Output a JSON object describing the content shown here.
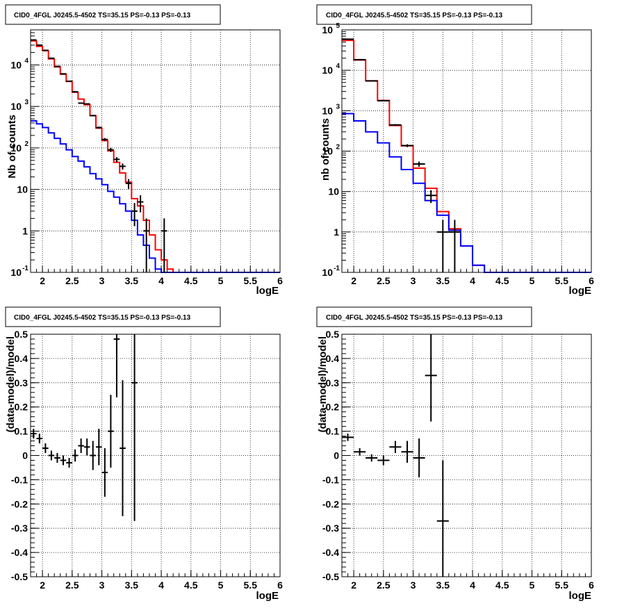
{
  "chart_data": [
    {
      "id": "counts-left",
      "type": "line",
      "title": "CID0_4FGL J0245.5-4502 TS=35.15 PS=-0.13 PS=-0.13",
      "xlabel": "logE",
      "ylabel": "Nb of counts",
      "xlim": [
        1.8,
        6.0
      ],
      "ylim": [
        0.1,
        70000
      ],
      "yscale": "log",
      "grid": true,
      "x_ticks": [
        "2",
        "2.5",
        "3",
        "3.5",
        "4",
        "4.5",
        "5",
        "5.5",
        "6"
      ],
      "y_ticks": [
        {
          "base": "10",
          "exp": "-1",
          "v": 0.1
        },
        {
          "base": "1",
          "exp": "",
          "v": 1
        },
        {
          "base": "10",
          "exp": "",
          "v": 10
        },
        {
          "base": "10",
          "exp": "2",
          "v": 100
        },
        {
          "base": "10",
          "exp": "3",
          "v": 1000
        },
        {
          "base": "10",
          "exp": "4",
          "v": 10000
        }
      ],
      "bin_edges": [
        1.8,
        1.9,
        2.0,
        2.1,
        2.2,
        2.3,
        2.4,
        2.5,
        2.6,
        2.7,
        2.8,
        2.9,
        3.0,
        3.1,
        3.2,
        3.3,
        3.4,
        3.5,
        3.6,
        3.7,
        3.8,
        3.9,
        4.0,
        4.1,
        4.2,
        4.3,
        4.4,
        4.5,
        4.6,
        4.7,
        4.8,
        4.9,
        5.0,
        5.1,
        5.2,
        5.3,
        5.4,
        5.5,
        5.6,
        5.7,
        5.8,
        5.9,
        6.0
      ],
      "series": [
        {
          "color": "#ff0000",
          "values": [
            38000,
            28000,
            22000,
            14000,
            9000,
            6000,
            4000,
            2200,
            1500,
            1100,
            600,
            300,
            150,
            85,
            45,
            25,
            15,
            6,
            4,
            1.8,
            0.8,
            0.35,
            0.2,
            0.12,
            0.1,
            0.1,
            0.1,
            0.1,
            0.1,
            0.1,
            0.1,
            0.1,
            0.1,
            0.1,
            0.1,
            0.1,
            0.1,
            0.1,
            0.1,
            0.1,
            0.1,
            0.1
          ]
        },
        {
          "color": "#0000ff",
          "values": [
            450,
            380,
            310,
            230,
            170,
            125,
            90,
            62,
            48,
            35,
            24,
            18,
            13,
            9,
            6.5,
            4.5,
            3,
            1.8,
            0.8,
            0.45,
            0.22,
            0.12,
            0.1,
            0.1,
            0.1,
            0.1,
            0.1,
            0.1,
            0.1,
            0.1,
            0.1,
            0.1,
            0.1,
            0.1,
            0.1,
            0.1,
            0.1,
            0.1,
            0.1,
            0.1,
            0.1,
            0.1
          ]
        }
      ],
      "points": [
        {
          "x": 1.85,
          "y": 40000,
          "xerr": 0.05,
          "ylo": 39500,
          "yhi": 40500
        },
        {
          "x": 1.95,
          "y": 30000,
          "xerr": 0.05,
          "ylo": 29600,
          "yhi": 30400
        },
        {
          "x": 2.05,
          "y": 22500,
          "xerr": 0.05,
          "ylo": 22200,
          "yhi": 22800
        },
        {
          "x": 2.15,
          "y": 14500,
          "xerr": 0.05,
          "ylo": 14300,
          "yhi": 14700
        },
        {
          "x": 2.25,
          "y": 9200,
          "xerr": 0.05,
          "ylo": 9050,
          "yhi": 9350
        },
        {
          "x": 2.35,
          "y": 6100,
          "xerr": 0.05,
          "ylo": 6000,
          "yhi": 6200
        },
        {
          "x": 2.45,
          "y": 4050,
          "xerr": 0.05,
          "ylo": 3950,
          "yhi": 4150
        },
        {
          "x": 2.55,
          "y": 2250,
          "xerr": 0.05,
          "ylo": 2200,
          "yhi": 2300
        },
        {
          "x": 2.65,
          "y": 1200,
          "xerr": 0.05,
          "ylo": 1160,
          "yhi": 1240
        },
        {
          "x": 2.75,
          "y": 1150,
          "xerr": 0.05,
          "ylo": 1110,
          "yhi": 1190
        },
        {
          "x": 2.85,
          "y": 600,
          "xerr": 0.05,
          "ylo": 575,
          "yhi": 625
        },
        {
          "x": 2.95,
          "y": 310,
          "xerr": 0.05,
          "ylo": 292,
          "yhi": 328
        },
        {
          "x": 3.05,
          "y": 160,
          "xerr": 0.05,
          "ylo": 147,
          "yhi": 173
        },
        {
          "x": 3.15,
          "y": 90,
          "xerr": 0.05,
          "ylo": 80,
          "yhi": 100
        },
        {
          "x": 3.25,
          "y": 53,
          "xerr": 0.05,
          "ylo": 46,
          "yhi": 60
        },
        {
          "x": 3.35,
          "y": 36,
          "xerr": 0.05,
          "ylo": 30,
          "yhi": 42
        },
        {
          "x": 3.45,
          "y": 14,
          "xerr": 0.05,
          "ylo": 10.3,
          "yhi": 17.7
        },
        {
          "x": 3.55,
          "y": 3,
          "xerr": 0.05,
          "ylo": 1.3,
          "yhi": 4.7
        },
        {
          "x": 3.65,
          "y": 5,
          "xerr": 0.05,
          "ylo": 2.8,
          "yhi": 7.2
        },
        {
          "x": 3.75,
          "y": 1,
          "xerr": 0.05,
          "ylo": 0.1,
          "yhi": 2.0
        },
        {
          "x": 4.05,
          "y": 1,
          "xerr": 0.05,
          "ylo": 0.1,
          "yhi": 2.0
        }
      ]
    },
    {
      "id": "counts-right",
      "type": "line",
      "title": "CID0_4FGL J0245.5-4502 TS=35.15 PS=-0.13 PS=-0.13",
      "xlabel": "logE",
      "ylabel": "nb of counts",
      "xlim": [
        1.8,
        6.0
      ],
      "ylim": [
        0.1,
        100000
      ],
      "yscale": "log",
      "grid": true,
      "x_ticks": [
        "2",
        "2.5",
        "3",
        "3.5",
        "4",
        "4.5",
        "5",
        "5.5",
        "6"
      ],
      "y_ticks": [
        {
          "base": "10",
          "exp": "-1",
          "v": 0.1
        },
        {
          "base": "1",
          "exp": "",
          "v": 1
        },
        {
          "base": "10",
          "exp": "",
          "v": 10
        },
        {
          "base": "10",
          "exp": "2",
          "v": 100
        },
        {
          "base": "10",
          "exp": "3",
          "v": 1000
        },
        {
          "base": "10",
          "exp": "4",
          "v": 10000
        },
        {
          "base": "10",
          "exp": "5",
          "v": 100000
        }
      ],
      "bin_edges": [
        1.8,
        2.0,
        2.2,
        2.4,
        2.6,
        2.8,
        3.0,
        3.2,
        3.4,
        3.6,
        3.8,
        4.0,
        4.2,
        4.4,
        4.6,
        4.8,
        5.0,
        5.2,
        5.4,
        5.6,
        5.8,
        6.0
      ],
      "series": [
        {
          "color": "#ff0000",
          "values": [
            55000,
            18000,
            5500,
            1800,
            430,
            135,
            38,
            12,
            3.2,
            1.2,
            0.45,
            0.15,
            0.1,
            0.1,
            0.1,
            0.1,
            0.1,
            0.1,
            0.1,
            0.1,
            0.1
          ]
        },
        {
          "color": "#0000ff",
          "values": [
            850,
            560,
            300,
            160,
            72,
            35,
            16,
            6,
            2.6,
            1.1,
            0.45,
            0.15,
            0.1,
            0.1,
            0.1,
            0.1,
            0.1,
            0.1,
            0.1,
            0.1,
            0.1
          ]
        }
      ],
      "points": [
        {
          "x": 1.9,
          "y": 59000,
          "xerr": 0.1,
          "ylo": 58500,
          "yhi": 59500
        },
        {
          "x": 2.1,
          "y": 18300,
          "xerr": 0.1,
          "ylo": 18150,
          "yhi": 18450
        },
        {
          "x": 2.3,
          "y": 5450,
          "xerr": 0.1,
          "ylo": 5380,
          "yhi": 5520
        },
        {
          "x": 2.5,
          "y": 1760,
          "xerr": 0.1,
          "ylo": 1720,
          "yhi": 1800
        },
        {
          "x": 2.7,
          "y": 445,
          "xerr": 0.1,
          "ylo": 425,
          "yhi": 465
        },
        {
          "x": 2.9,
          "y": 137,
          "xerr": 0.1,
          "ylo": 126,
          "yhi": 148
        },
        {
          "x": 3.1,
          "y": 48,
          "xerr": 0.1,
          "ylo": 41,
          "yhi": 55
        },
        {
          "x": 3.3,
          "y": 8,
          "xerr": 0.1,
          "ylo": 5.2,
          "yhi": 10.8
        },
        {
          "x": 3.5,
          "y": 1,
          "xerr": 0.1,
          "ylo": 0.1,
          "yhi": 2.0
        },
        {
          "x": 3.7,
          "y": 1,
          "xerr": 0.1,
          "ylo": 0.1,
          "yhi": 2.0
        }
      ]
    },
    {
      "id": "resid-left",
      "type": "scatter",
      "title": "CID0_4FGL J0245.5-4502 TS=35.15 PS=-0.13 PS=-0.13",
      "xlabel": "logE",
      "ylabel": "(data-model)/model",
      "xlim": [
        1.8,
        6.0
      ],
      "ylim": [
        -0.5,
        0.5
      ],
      "grid": true,
      "x_ticks": [
        "2",
        "2.5",
        "3",
        "3.5",
        "4",
        "4.5",
        "5",
        "5.5",
        "6"
      ],
      "y_ticks": [
        "-0.5",
        "-0.4",
        "-0.3",
        "-0.2",
        "-0.1",
        "0",
        "0.1",
        "0.2",
        "0.3",
        "0.4",
        "0.5"
      ],
      "points": [
        {
          "x": 1.85,
          "y": 0.09,
          "xerr": 0.05,
          "ylo": 0.07,
          "yhi": 0.11
        },
        {
          "x": 1.95,
          "y": 0.07,
          "xerr": 0.05,
          "ylo": 0.05,
          "yhi": 0.09
        },
        {
          "x": 2.05,
          "y": 0.03,
          "xerr": 0.05,
          "ylo": 0.01,
          "yhi": 0.05
        },
        {
          "x": 2.15,
          "y": 0.0,
          "xerr": 0.05,
          "ylo": -0.02,
          "yhi": 0.02
        },
        {
          "x": 2.25,
          "y": -0.01,
          "xerr": 0.05,
          "ylo": -0.03,
          "yhi": 0.01
        },
        {
          "x": 2.35,
          "y": -0.02,
          "xerr": 0.05,
          "ylo": -0.04,
          "yhi": 0.0
        },
        {
          "x": 2.45,
          "y": -0.03,
          "xerr": 0.05,
          "ylo": -0.05,
          "yhi": -0.01
        },
        {
          "x": 2.55,
          "y": 0.0,
          "xerr": 0.05,
          "ylo": -0.025,
          "yhi": 0.025
        },
        {
          "x": 2.65,
          "y": 0.04,
          "xerr": 0.05,
          "ylo": 0.01,
          "yhi": 0.07
        },
        {
          "x": 2.75,
          "y": 0.035,
          "xerr": 0.05,
          "ylo": 0.0,
          "yhi": 0.07
        },
        {
          "x": 2.85,
          "y": 0.0,
          "xerr": 0.05,
          "ylo": -0.06,
          "yhi": 0.06
        },
        {
          "x": 2.95,
          "y": 0.035,
          "xerr": 0.05,
          "ylo": -0.04,
          "yhi": 0.11
        },
        {
          "x": 3.05,
          "y": -0.07,
          "xerr": 0.05,
          "ylo": -0.17,
          "yhi": 0.03
        },
        {
          "x": 3.15,
          "y": 0.1,
          "xerr": 0.05,
          "ylo": -0.05,
          "yhi": 0.25
        },
        {
          "x": 3.25,
          "y": 0.48,
          "xerr": 0.05,
          "ylo": 0.24,
          "yhi": 0.5
        },
        {
          "x": 3.35,
          "y": 0.03,
          "xerr": 0.05,
          "ylo": -0.25,
          "yhi": 0.31
        },
        {
          "x": 3.55,
          "y": 0.3,
          "xerr": 0.05,
          "ylo": -0.27,
          "yhi": 0.5
        }
      ]
    },
    {
      "id": "resid-right",
      "type": "scatter",
      "title": "CID0_4FGL J0245.5-4502 TS=35.15 PS=-0.13 PS=-0.13",
      "xlabel": "logE",
      "ylabel": "(data-model)/model",
      "xlim": [
        1.8,
        6.0
      ],
      "ylim": [
        -0.5,
        0.5
      ],
      "grid": true,
      "x_ticks": [
        "2",
        "2.5",
        "3",
        "3.5",
        "4",
        "4.5",
        "5",
        "5.5",
        "6"
      ],
      "y_ticks": [
        "-0.5",
        "-0.4",
        "-0.3",
        "-0.2",
        "-0.1",
        "0",
        "0.1",
        "0.2",
        "0.3",
        "0.4",
        "0.5"
      ],
      "points": [
        {
          "x": 1.9,
          "y": 0.075,
          "xerr": 0.1,
          "ylo": 0.06,
          "yhi": 0.09
        },
        {
          "x": 2.1,
          "y": 0.015,
          "xerr": 0.1,
          "ylo": 0.0,
          "yhi": 0.03
        },
        {
          "x": 2.3,
          "y": -0.01,
          "xerr": 0.1,
          "ylo": -0.025,
          "yhi": 0.005
        },
        {
          "x": 2.5,
          "y": -0.02,
          "xerr": 0.1,
          "ylo": -0.04,
          "yhi": 0.0
        },
        {
          "x": 2.7,
          "y": 0.035,
          "xerr": 0.1,
          "ylo": 0.01,
          "yhi": 0.06
        },
        {
          "x": 2.9,
          "y": 0.015,
          "xerr": 0.1,
          "ylo": -0.03,
          "yhi": 0.06
        },
        {
          "x": 3.1,
          "y": -0.01,
          "xerr": 0.1,
          "ylo": -0.09,
          "yhi": 0.07
        },
        {
          "x": 3.3,
          "y": 0.33,
          "xerr": 0.1,
          "ylo": 0.14,
          "yhi": 0.5
        },
        {
          "x": 3.5,
          "y": -0.27,
          "xerr": 0.1,
          "ylo": -0.5,
          "yhi": -0.02
        }
      ]
    }
  ]
}
